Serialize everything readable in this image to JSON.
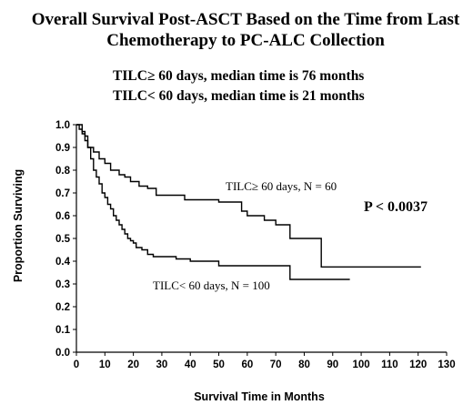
{
  "chart_data": {
    "type": "line",
    "title": "Overall Survival Post-ASCT Based on the Time from Last",
    "title_line2": "Chemotherapy to PC-ALC Collection",
    "subtitle_lines": [
      "TILC≥ 60 days, median time is 76 months",
      "TILC< 60 days, median time is 21 months"
    ],
    "xlabel": "Survival Time in Months",
    "ylabel": "Proportion Surviving",
    "xlim": [
      0,
      130
    ],
    "ylim": [
      0,
      1.0
    ],
    "x_ticks": [
      "0",
      "10",
      "20",
      "30",
      "40",
      "50",
      "60",
      "70",
      "80",
      "90",
      "100",
      "110",
      "120",
      "130"
    ],
    "y_ticks": [
      "0.0",
      "0.1",
      "0.2",
      "0.3",
      "0.4",
      "0.5",
      "0.6",
      "0.7",
      "0.8",
      "0.9",
      "1.0"
    ],
    "annotation": "P < 0.0037",
    "grid": false,
    "line_color": "#000000",
    "series": [
      {
        "name": "TILC≥ 60 days, N = 60",
        "step_x": [
          0,
          2,
          3,
          4,
          6,
          8,
          10,
          12,
          15,
          17,
          19,
          22,
          25,
          28,
          38,
          44,
          50,
          58,
          60,
          66,
          70,
          75,
          86,
          121
        ],
        "step_y": [
          1.0,
          0.97,
          0.95,
          0.9,
          0.88,
          0.85,
          0.83,
          0.8,
          0.78,
          0.77,
          0.75,
          0.73,
          0.72,
          0.69,
          0.67,
          0.67,
          0.66,
          0.62,
          0.6,
          0.58,
          0.56,
          0.5,
          0.375,
          0.375
        ]
      },
      {
        "name": "TILC< 60 days, N = 100",
        "step_x": [
          0,
          1,
          2,
          3,
          4,
          5,
          6,
          7,
          8,
          9,
          10,
          11,
          12,
          13,
          14,
          15,
          16,
          17,
          18,
          19,
          20,
          21,
          23,
          25,
          27,
          30,
          35,
          40,
          50,
          75,
          96
        ],
        "step_y": [
          1.0,
          0.98,
          0.96,
          0.93,
          0.9,
          0.85,
          0.8,
          0.77,
          0.74,
          0.7,
          0.68,
          0.65,
          0.63,
          0.6,
          0.58,
          0.56,
          0.54,
          0.52,
          0.5,
          0.49,
          0.48,
          0.46,
          0.45,
          0.43,
          0.42,
          0.42,
          0.41,
          0.4,
          0.38,
          0.32,
          0.32
        ]
      }
    ]
  }
}
